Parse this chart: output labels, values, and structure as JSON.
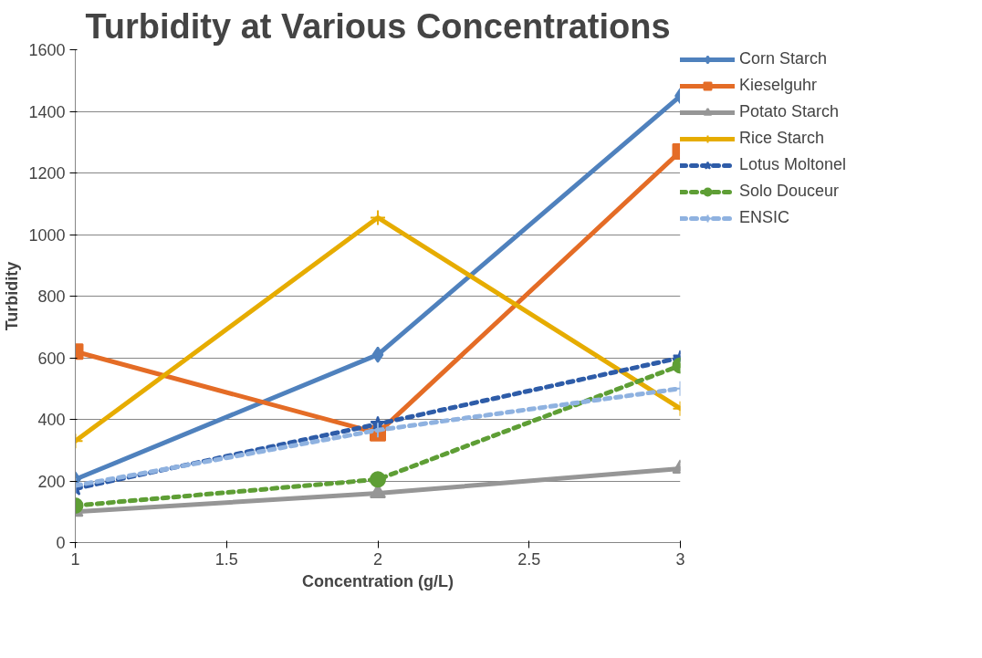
{
  "chart_data": {
    "type": "line",
    "title": "Turbidity at Various Concentrations",
    "xlabel": "Concentration (g/L)",
    "ylabel": "Turbidity",
    "x": [
      1,
      2,
      3
    ],
    "xlim": [
      1,
      3
    ],
    "xticks": [
      1,
      1.5,
      2,
      2.5,
      3
    ],
    "ylim": [
      0,
      1600
    ],
    "yticks": [
      0,
      200,
      400,
      600,
      800,
      1000,
      1200,
      1400,
      1600
    ],
    "grid": "y",
    "legend": "right",
    "series": [
      {
        "name": "Corn Starch",
        "color": "#4f81bd",
        "values": [
          205,
          610,
          1450
        ],
        "marker": "diamond",
        "line_style": "solid"
      },
      {
        "name": "Kieselguhr",
        "color": "#e46c26",
        "values": [
          620,
          355,
          1270
        ],
        "marker": "square",
        "line_style": "solid"
      },
      {
        "name": "Potato Starch",
        "color": "#969696",
        "values": [
          100,
          160,
          240
        ],
        "marker": "triangle",
        "line_style": "solid"
      },
      {
        "name": "Rice Starch",
        "color": "#e6ac00",
        "values": [
          330,
          1055,
          435
        ],
        "marker": "cross",
        "line_style": "solid"
      },
      {
        "name": "Lotus Moltonel",
        "color": "#2e5ca8",
        "values": [
          175,
          385,
          600
        ],
        "marker": "star",
        "line_style": "dashed"
      },
      {
        "name": "Solo Douceur",
        "color": "#5e9e35",
        "values": [
          120,
          205,
          575
        ],
        "marker": "circle",
        "line_style": "dashed"
      },
      {
        "name": "ENSIC",
        "color": "#8fb2e0",
        "values": [
          185,
          365,
          500
        ],
        "marker": "cross",
        "line_style": "dashed"
      }
    ]
  }
}
